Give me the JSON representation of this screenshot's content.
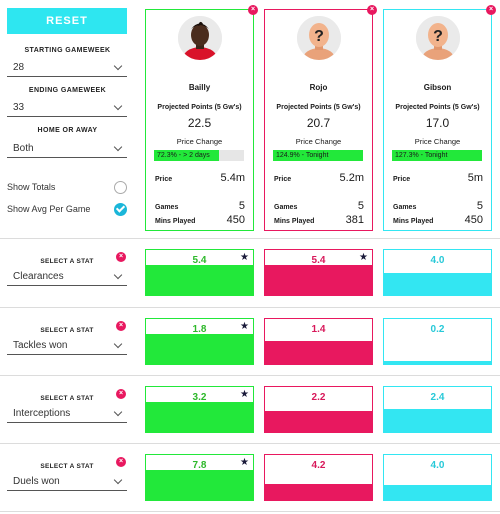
{
  "sidebar": {
    "reset_label": "RESET",
    "starting_gameweek": {
      "label": "STARTING GAMEWEEK",
      "value": "28"
    },
    "ending_gameweek": {
      "label": "ENDING GAMEWEEK",
      "value": "33"
    },
    "home_or_away": {
      "label": "HOME OR AWAY",
      "value": "Both"
    },
    "show_totals": {
      "label": "Show Totals",
      "checked": false
    },
    "show_avg": {
      "label": "Show Avg Per Game",
      "checked": true
    }
  },
  "labels": {
    "projected": "Projected Points (5 Gw's)",
    "price_change": "Price Change",
    "price": "Price",
    "games": "Games",
    "mins": "Mins Played",
    "select_stat": "SELECT A STAT",
    "remove": "×"
  },
  "colors": {
    "green": "#22e83a",
    "pink": "#e8185f",
    "cyan": "#33e6f2"
  },
  "players": [
    {
      "name": "Bailly",
      "projected": "22.5",
      "price_change_text": "72.3% - > 2 days",
      "price_change_pct": 0.723,
      "price": "5.4m",
      "games": "5",
      "mins": "450",
      "avatar": "player-photo",
      "border": "#22e83a"
    },
    {
      "name": "Rojo",
      "projected": "20.7",
      "price_change_text": "124.9% - Tonight",
      "price_change_pct": 1.0,
      "price": "5.2m",
      "games": "5",
      "mins": "381",
      "avatar": "placeholder-question-icon",
      "border": "#e8185f"
    },
    {
      "name": "Gibson",
      "projected": "17.0",
      "price_change_text": "127.3% - Tonight",
      "price_change_pct": 1.0,
      "price": "5m",
      "games": "5",
      "mins": "450",
      "avatar": "placeholder-question-icon",
      "border": "#33e6f2"
    }
  ],
  "stats": [
    {
      "stat": "Clearances",
      "values": [
        "5.4",
        "5.4",
        "4.0"
      ],
      "fill": [
        1.0,
        1.0,
        0.74
      ],
      "best": [
        true,
        true,
        false
      ]
    },
    {
      "stat": "Tackles won",
      "values": [
        "1.8",
        "1.4",
        "0.2"
      ],
      "fill": [
        1.0,
        0.78,
        0.11
      ],
      "best": [
        true,
        false,
        false
      ]
    },
    {
      "stat": "Interceptions",
      "values": [
        "3.2",
        "2.2",
        "2.4"
      ],
      "fill": [
        1.0,
        0.69,
        0.75
      ],
      "best": [
        true,
        false,
        false
      ]
    },
    {
      "stat": "Duels won",
      "values": [
        "7.8",
        "4.2",
        "4.0"
      ],
      "fill": [
        1.0,
        0.54,
        0.51
      ],
      "best": [
        true,
        false,
        false
      ]
    }
  ]
}
